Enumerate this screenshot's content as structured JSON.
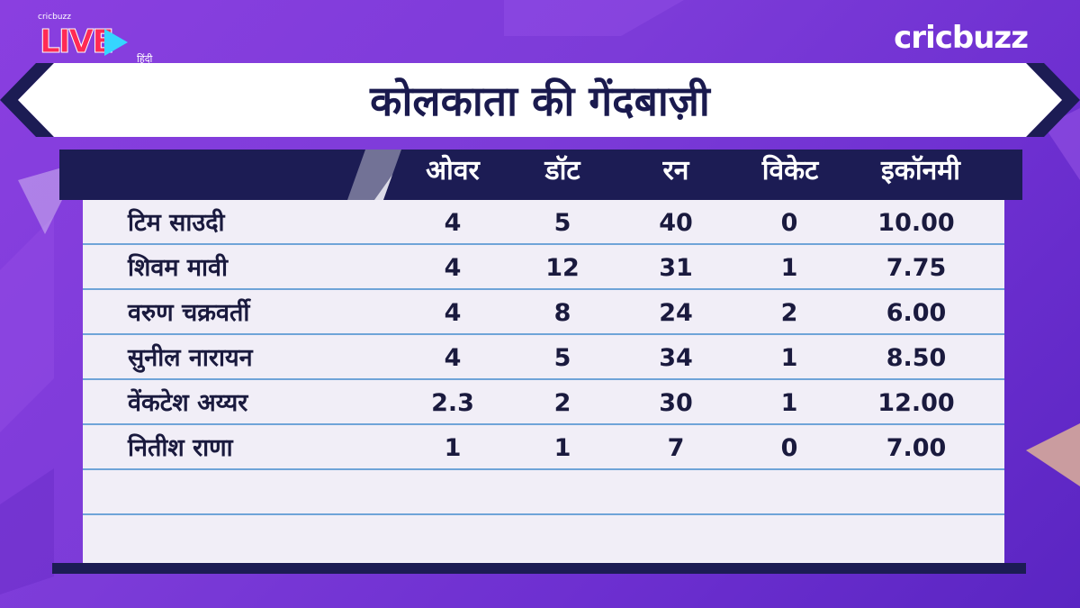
{
  "brand": {
    "live_small": "cricbuzz",
    "live_word": "LIVE",
    "live_language": "हिंदी",
    "logo": "cricbuzz"
  },
  "title": "कोलकाता की गेंदबाज़ी",
  "table": {
    "columns": [
      "ओवर",
      "डॉट",
      "रन",
      "विकेट",
      "इकॉनमी"
    ],
    "rows": [
      {
        "name": "टिम साउदी",
        "overs": "4",
        "dots": "5",
        "runs": "40",
        "wickets": "0",
        "economy": "10.00"
      },
      {
        "name": "शिवम मावी",
        "overs": "4",
        "dots": "12",
        "runs": "31",
        "wickets": "1",
        "economy": "7.75"
      },
      {
        "name": "वरुण चक्रवर्ती",
        "overs": "4",
        "dots": "8",
        "runs": "24",
        "wickets": "2",
        "economy": "6.00"
      },
      {
        "name": "सुनील नारायन",
        "overs": "4",
        "dots": "5",
        "runs": "34",
        "wickets": "1",
        "economy": "8.50"
      },
      {
        "name": "वेंकटेश अय्यर",
        "overs": "2.3",
        "dots": "2",
        "runs": "30",
        "wickets": "1",
        "economy": "12.00"
      },
      {
        "name": "नितीश राणा",
        "overs": "1",
        "dots": "1",
        "runs": "7",
        "wickets": "0",
        "economy": "7.00"
      }
    ]
  },
  "colors": {
    "background": "#7c3bd8",
    "header": "#1c1c54",
    "table_bg": "#f1eef7",
    "row_line": "#6fa4d8",
    "text_dark": "#1a1a3e",
    "accent_green": "#19c47a"
  }
}
